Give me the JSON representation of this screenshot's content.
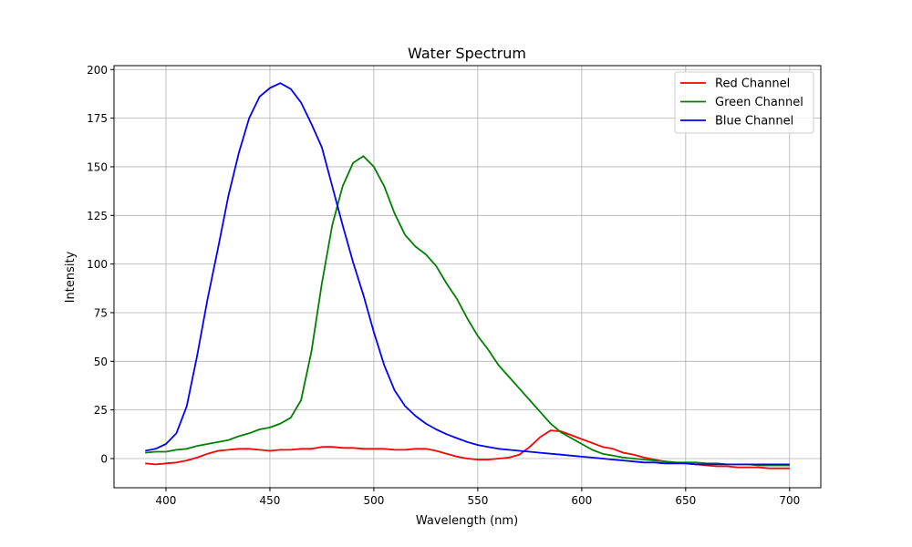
{
  "chart_data": {
    "type": "line",
    "title": "Water Spectrum",
    "xlabel": "Wavelength (nm)",
    "ylabel": "Intensity",
    "xlim": [
      375,
      715
    ],
    "ylim": [
      -15,
      202
    ],
    "xticks": [
      400,
      450,
      500,
      550,
      600,
      650,
      700
    ],
    "yticks": [
      0,
      25,
      50,
      75,
      100,
      125,
      150,
      175,
      200
    ],
    "grid": true,
    "legend_position": "top-right",
    "series": [
      {
        "name": "Red Channel",
        "color": "#ff0000",
        "x": [
          390,
          395,
          400,
          405,
          410,
          415,
          420,
          425,
          430,
          435,
          440,
          445,
          450,
          455,
          460,
          465,
          470,
          475,
          480,
          485,
          490,
          495,
          500,
          505,
          510,
          515,
          520,
          525,
          530,
          535,
          540,
          545,
          550,
          555,
          560,
          565,
          570,
          575,
          580,
          585,
          590,
          595,
          600,
          605,
          610,
          615,
          620,
          625,
          630,
          635,
          640,
          645,
          650,
          655,
          660,
          665,
          670,
          675,
          680,
          685,
          690,
          695,
          700
        ],
        "values": [
          -2.5,
          -3,
          -2.5,
          -2,
          -1,
          0.5,
          2.5,
          4,
          4.5,
          5,
          5,
          4.5,
          4,
          4.5,
          4.5,
          5,
          5,
          6,
          6,
          5.5,
          5.5,
          5,
          5,
          5,
          4.5,
          4.5,
          5,
          5,
          4,
          2.5,
          1,
          0,
          -0.5,
          -0.5,
          0,
          0.5,
          2,
          6,
          11,
          14.5,
          14,
          12,
          10,
          8,
          6,
          5,
          3,
          2,
          0.5,
          -0.5,
          -1.5,
          -2,
          -2.5,
          -3,
          -3.5,
          -4,
          -4,
          -4.5,
          -4.5,
          -4.5,
          -5,
          -5,
          -5
        ]
      },
      {
        "name": "Green Channel",
        "color": "#008000",
        "x": [
          390,
          395,
          400,
          405,
          410,
          415,
          420,
          425,
          430,
          435,
          440,
          445,
          450,
          455,
          460,
          465,
          470,
          475,
          480,
          485,
          490,
          495,
          500,
          505,
          510,
          515,
          520,
          525,
          530,
          535,
          540,
          545,
          550,
          555,
          560,
          565,
          570,
          575,
          580,
          585,
          590,
          595,
          600,
          605,
          610,
          615,
          620,
          625,
          630,
          635,
          640,
          645,
          650,
          655,
          660,
          665,
          670,
          675,
          680,
          685,
          690,
          695,
          700
        ],
        "values": [
          3,
          3.5,
          3.5,
          4.5,
          5,
          6.5,
          7.5,
          8.5,
          9.5,
          11.5,
          13,
          15,
          16,
          18,
          21,
          30,
          55,
          90,
          120,
          140,
          152,
          155.5,
          150,
          140,
          126,
          115,
          109,
          105,
          99,
          90,
          82,
          72,
          63,
          56,
          48,
          42,
          36,
          30,
          24,
          18,
          13.5,
          10.5,
          7.5,
          4.5,
          2.5,
          1.5,
          0.5,
          0,
          -0.5,
          -1,
          -1.5,
          -2,
          -2,
          -2,
          -2.5,
          -2.5,
          -3,
          -3,
          -3,
          -3.5,
          -3.5,
          -3.5,
          -3.5
        ]
      },
      {
        "name": "Blue Channel",
        "color": "#0000ff",
        "x": [
          390,
          395,
          400,
          405,
          410,
          415,
          420,
          425,
          430,
          435,
          440,
          445,
          450,
          455,
          460,
          465,
          470,
          475,
          480,
          485,
          490,
          495,
          500,
          505,
          510,
          515,
          520,
          525,
          530,
          535,
          540,
          545,
          550,
          555,
          560,
          565,
          570,
          575,
          580,
          585,
          590,
          595,
          600,
          605,
          610,
          615,
          620,
          625,
          630,
          635,
          640,
          645,
          650,
          655,
          660,
          665,
          670,
          675,
          680,
          685,
          690,
          695,
          700
        ],
        "values": [
          4,
          5,
          7.5,
          13,
          27,
          53,
          82,
          108,
          135,
          157,
          175,
          186,
          190.5,
          193,
          190,
          183,
          172,
          160,
          140,
          120,
          101,
          84,
          65,
          48,
          35,
          27,
          22,
          18,
          15,
          12.5,
          10.5,
          8.5,
          7,
          6,
          5,
          4.5,
          4,
          3.5,
          3,
          2.5,
          2,
          1.5,
          1,
          0.5,
          0,
          -0.5,
          -1,
          -1.5,
          -2,
          -2,
          -2.5,
          -2.5,
          -2.5,
          -3,
          -3,
          -3,
          -3,
          -3,
          -3,
          -3,
          -3,
          -3,
          -3
        ]
      }
    ]
  }
}
